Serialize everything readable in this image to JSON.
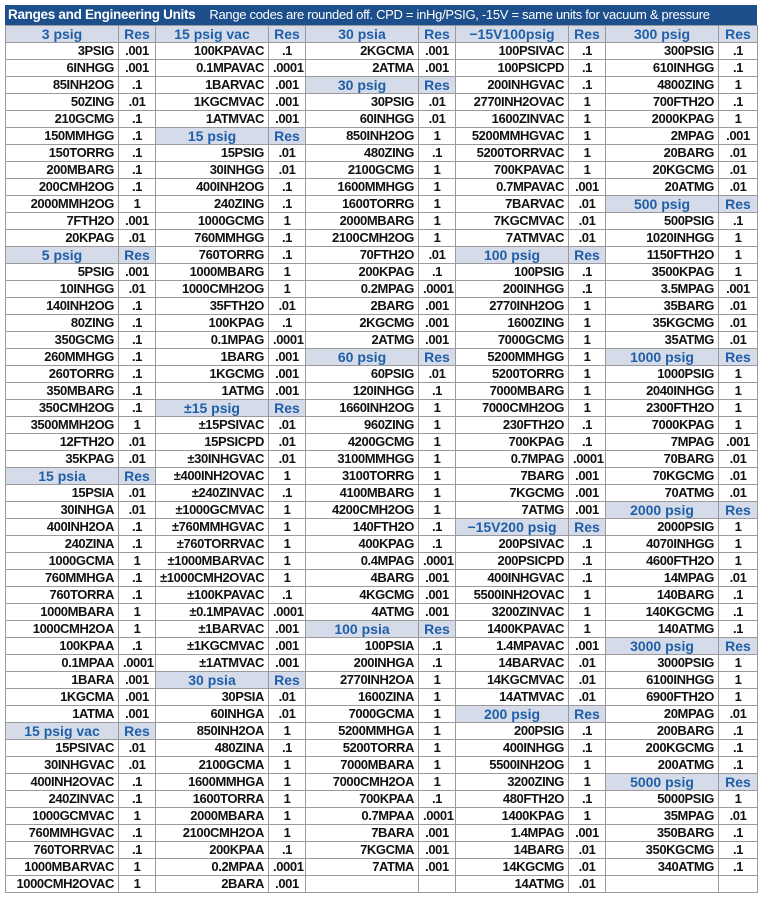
{
  "title": "Ranges and Engineering Units",
  "subtitle": "Range codes are rounded off.  CPD = inHg/PSIG, -15V = same units for vacuum & pressure",
  "colors": {
    "title_bg": "#1d4f8c",
    "header_bg": "#d5dbe9",
    "header_text": "#1f5fa8"
  },
  "columns": [
    {
      "rows": [
        {
          "header": "3 psig",
          "res": "Res"
        },
        {
          "code": "3PSIG",
          "res": ".001"
        },
        {
          "code": "6INHGG",
          "res": ".001"
        },
        {
          "code": "85INH2OG",
          "res": ".1"
        },
        {
          "code": "50ZING",
          "res": ".01"
        },
        {
          "code": "210GCMG",
          "res": ".1"
        },
        {
          "code": "150MMHGG",
          "res": ".1"
        },
        {
          "code": "150TORRG",
          "res": ".1"
        },
        {
          "code": "200MBARG",
          "res": ".1"
        },
        {
          "code": "200CMH2OG",
          "res": ".1"
        },
        {
          "code": "2000MMH2OG",
          "res": "1"
        },
        {
          "code": "7FTH2O",
          "res": ".001"
        },
        {
          "code": "20KPAG",
          "res": ".01"
        },
        {
          "header": "5 psig",
          "res": "Res"
        },
        {
          "code": "5PSIG",
          "res": ".001"
        },
        {
          "code": "10INHGG",
          "res": ".01"
        },
        {
          "code": "140INH2OG",
          "res": ".1"
        },
        {
          "code": "80ZING",
          "res": ".1"
        },
        {
          "code": "350GCMG",
          "res": ".1"
        },
        {
          "code": "260MMHGG",
          "res": ".1"
        },
        {
          "code": "260TORRG",
          "res": ".1"
        },
        {
          "code": "350MBARG",
          "res": ".1"
        },
        {
          "code": "350CMH2OG",
          "res": ".1"
        },
        {
          "code": "3500MMH2OG",
          "res": "1"
        },
        {
          "code": "12FTH2O",
          "res": ".01"
        },
        {
          "code": "35KPAG",
          "res": ".01"
        },
        {
          "header": "15 psia",
          "res": "Res"
        },
        {
          "code": "15PSIA",
          "res": ".01"
        },
        {
          "code": "30INHGA",
          "res": ".01"
        },
        {
          "code": "400INH2OA",
          "res": ".1"
        },
        {
          "code": "240ZINA",
          "res": ".1"
        },
        {
          "code": "1000GCMA",
          "res": "1"
        },
        {
          "code": "760MMHGA",
          "res": ".1"
        },
        {
          "code": "760TORRA",
          "res": ".1"
        },
        {
          "code": "1000MBARA",
          "res": "1"
        },
        {
          "code": "1000CMH2OA",
          "res": "1"
        },
        {
          "code": "100KPAA",
          "res": ".1"
        },
        {
          "code": "0.1MPAA",
          "res": ".0001"
        },
        {
          "code": "1BARA",
          "res": ".001"
        },
        {
          "code": "1KGCMA",
          "res": ".001"
        },
        {
          "code": "1ATMA",
          "res": ".001"
        },
        {
          "header": "15 psig vac",
          "res": "Res"
        },
        {
          "code": "15PSIVAC",
          "res": ".01"
        },
        {
          "code": "30INHGVAC",
          "res": ".01"
        },
        {
          "code": "400INH2OVAC",
          "res": ".1"
        },
        {
          "code": "240ZINVAC",
          "res": ".1"
        },
        {
          "code": "1000GCMVAC",
          "res": "1"
        },
        {
          "code": "760MMHGVAC",
          "res": ".1"
        },
        {
          "code": "760TORRVAC",
          "res": ".1"
        },
        {
          "code": "1000MBARVAC",
          "res": "1"
        },
        {
          "code": "1000CMH2OVAC",
          "res": "1"
        }
      ]
    },
    {
      "rows": [
        {
          "header": "15 psig vac",
          "res": "Res"
        },
        {
          "code": "100KPAVAC",
          "res": ".1"
        },
        {
          "code": "0.1MPAVAC",
          "res": ".0001"
        },
        {
          "code": "1BARVAC",
          "res": ".001"
        },
        {
          "code": "1KGCMVAC",
          "res": ".001"
        },
        {
          "code": "1ATMVAC",
          "res": ".001"
        },
        {
          "header": "15 psig",
          "res": "Res"
        },
        {
          "code": "15PSIG",
          "res": ".01"
        },
        {
          "code": "30INHGG",
          "res": ".01"
        },
        {
          "code": "400INH2OG",
          "res": ".1"
        },
        {
          "code": "240ZING",
          "res": ".1"
        },
        {
          "code": "1000GCMG",
          "res": "1"
        },
        {
          "code": "760MMHGG",
          "res": ".1"
        },
        {
          "code": "760TORRG",
          "res": ".1"
        },
        {
          "code": "1000MBARG",
          "res": "1"
        },
        {
          "code": "1000CMH2OG",
          "res": "1"
        },
        {
          "code": "35FTH2O",
          "res": ".01"
        },
        {
          "code": "100KPAG",
          "res": ".1"
        },
        {
          "code": "0.1MPAG",
          "res": ".0001"
        },
        {
          "code": "1BARG",
          "res": ".001"
        },
        {
          "code": "1KGCMG",
          "res": ".001"
        },
        {
          "code": "1ATMG",
          "res": ".001"
        },
        {
          "header": "±15 psig",
          "res": "Res"
        },
        {
          "code": "±15PSIVAC",
          "res": ".01"
        },
        {
          "code": "15PSICPD",
          "res": ".01"
        },
        {
          "code": "±30INHGVAC",
          "res": ".01"
        },
        {
          "code": "±400INH2OVAC",
          "res": "1"
        },
        {
          "code": "±240ZINVAC",
          "res": ".1"
        },
        {
          "code": "±1000GCMVAC",
          "res": "1"
        },
        {
          "code": "±760MMHGVAC",
          "res": "1"
        },
        {
          "code": "±760TORRVAC",
          "res": "1"
        },
        {
          "code": "±1000MBARVAC",
          "res": "1"
        },
        {
          "code": "±1000CMH2OVAC",
          "res": "1"
        },
        {
          "code": "±100KPAVAC",
          "res": ".1"
        },
        {
          "code": "±0.1MPAVAC",
          "res": ".0001"
        },
        {
          "code": "±1BARVAC",
          "res": ".001"
        },
        {
          "code": "±1KGCMVAC",
          "res": ".001"
        },
        {
          "code": "±1ATMVAC",
          "res": ".001"
        },
        {
          "header": "30 psia",
          "res": "Res"
        },
        {
          "code": "30PSIA",
          "res": ".01"
        },
        {
          "code": "60INHGA",
          "res": ".01"
        },
        {
          "code": "850INH2OA",
          "res": "1"
        },
        {
          "code": "480ZINA",
          "res": ".1"
        },
        {
          "code": "2100GCMA",
          "res": "1"
        },
        {
          "code": "1600MMHGA",
          "res": "1"
        },
        {
          "code": "1600TORRA",
          "res": "1"
        },
        {
          "code": "2000MBARA",
          "res": "1"
        },
        {
          "code": "2100CMH2OA",
          "res": "1"
        },
        {
          "code": "200KPAA",
          "res": ".1"
        },
        {
          "code": "0.2MPAA",
          "res": ".0001"
        },
        {
          "code": "2BARA",
          "res": ".001"
        }
      ]
    },
    {
      "rows": [
        {
          "header": "30 psia",
          "res": "Res"
        },
        {
          "code": "2KGCMA",
          "res": ".001"
        },
        {
          "code": "2ATMA",
          "res": ".001"
        },
        {
          "header": "30 psig",
          "res": "Res"
        },
        {
          "code": "30PSIG",
          "res": ".01"
        },
        {
          "code": "60INHGG",
          "res": ".01"
        },
        {
          "code": "850INH2OG",
          "res": "1"
        },
        {
          "code": "480ZING",
          "res": ".1"
        },
        {
          "code": "2100GCMG",
          "res": "1"
        },
        {
          "code": "1600MMHGG",
          "res": "1"
        },
        {
          "code": "1600TORRG",
          "res": "1"
        },
        {
          "code": "2000MBARG",
          "res": "1"
        },
        {
          "code": "2100CMH2OG",
          "res": "1"
        },
        {
          "code": "70FTH2O",
          "res": ".01"
        },
        {
          "code": "200KPAG",
          "res": ".1"
        },
        {
          "code": "0.2MPAG",
          "res": ".0001"
        },
        {
          "code": "2BARG",
          "res": ".001"
        },
        {
          "code": "2KGCMG",
          "res": ".001"
        },
        {
          "code": "2ATMG",
          "res": ".001"
        },
        {
          "header": "60 psig",
          "res": "Res"
        },
        {
          "code": "60PSIG",
          "res": ".01"
        },
        {
          "code": "120INHGG",
          "res": ".1"
        },
        {
          "code": "1660INH2OG",
          "res": "1"
        },
        {
          "code": "960ZING",
          "res": "1"
        },
        {
          "code": "4200GCMG",
          "res": "1"
        },
        {
          "code": "3100MMHGG",
          "res": "1"
        },
        {
          "code": "3100TORRG",
          "res": "1"
        },
        {
          "code": "4100MBARG",
          "res": "1"
        },
        {
          "code": "4200CMH2OG",
          "res": "1"
        },
        {
          "code": "140FTH2O",
          "res": ".1"
        },
        {
          "code": "400KPAG",
          "res": ".1"
        },
        {
          "code": "0.4MPAG",
          "res": ".0001"
        },
        {
          "code": "4BARG",
          "res": ".001"
        },
        {
          "code": "4KGCMG",
          "res": ".001"
        },
        {
          "code": "4ATMG",
          "res": ".001"
        },
        {
          "header": "100 psia",
          "res": "Res"
        },
        {
          "code": "100PSIA",
          "res": ".1"
        },
        {
          "code": "200INHGA",
          "res": ".1"
        },
        {
          "code": "2770INH2OA",
          "res": "1"
        },
        {
          "code": "1600ZINA",
          "res": "1"
        },
        {
          "code": "7000GCMA",
          "res": "1"
        },
        {
          "code": "5200MMHGA",
          "res": "1"
        },
        {
          "code": "5200TORRA",
          "res": "1"
        },
        {
          "code": "7000MBARA",
          "res": "1"
        },
        {
          "code": "7000CMH2OA",
          "res": "1"
        },
        {
          "code": "700KPAA",
          "res": ".1"
        },
        {
          "code": "0.7MPAA",
          "res": ".0001"
        },
        {
          "code": "7BARA",
          "res": ".001"
        },
        {
          "code": "7KGCMA",
          "res": ".001"
        },
        {
          "code": "7ATMA",
          "res": ".001"
        },
        {
          "code": "",
          "res": ""
        }
      ]
    },
    {
      "rows": [
        {
          "header": "−15V100psig",
          "res": "Res"
        },
        {
          "code": "100PSIVAC",
          "res": ".1"
        },
        {
          "code": "100PSICPD",
          "res": ".1"
        },
        {
          "code": "200INHGVAC",
          "res": ".1"
        },
        {
          "code": "2770INH2OVAC",
          "res": "1"
        },
        {
          "code": "1600ZINVAC",
          "res": "1"
        },
        {
          "code": "5200MMHGVAC",
          "res": "1"
        },
        {
          "code": "5200TORRVAC",
          "res": "1"
        },
        {
          "code": "700KPAVAC",
          "res": "1"
        },
        {
          "code": "0.7MPAVAC",
          "res": ".001"
        },
        {
          "code": "7BARVAC",
          "res": ".01"
        },
        {
          "code": "7KGCMVAC",
          "res": ".01"
        },
        {
          "code": "7ATMVAC",
          "res": ".01"
        },
        {
          "header": "100 psig",
          "res": "Res"
        },
        {
          "code": "100PSIG",
          "res": ".1"
        },
        {
          "code": "200INHGG",
          "res": ".1"
        },
        {
          "code": "2770INH2OG",
          "res": "1"
        },
        {
          "code": "1600ZING",
          "res": "1"
        },
        {
          "code": "7000GCMG",
          "res": "1"
        },
        {
          "code": "5200MMHGG",
          "res": "1"
        },
        {
          "code": "5200TORRG",
          "res": "1"
        },
        {
          "code": "7000MBARG",
          "res": "1"
        },
        {
          "code": "7000CMH2OG",
          "res": "1"
        },
        {
          "code": "230FTH2O",
          "res": ".1"
        },
        {
          "code": "700KPAG",
          "res": ".1"
        },
        {
          "code": "0.7MPAG",
          "res": ".0001"
        },
        {
          "code": "7BARG",
          "res": ".001"
        },
        {
          "code": "7KGCMG",
          "res": ".001"
        },
        {
          "code": "7ATMG",
          "res": ".001"
        },
        {
          "header": "−15V200 psig",
          "res": "Res"
        },
        {
          "code": "200PSIVAC",
          "res": ".1"
        },
        {
          "code": "200PSICPD",
          "res": ".1"
        },
        {
          "code": "400INHGVAC",
          "res": ".1"
        },
        {
          "code": "5500INH2OVAC",
          "res": "1"
        },
        {
          "code": "3200ZINVAC",
          "res": "1"
        },
        {
          "code": "1400KPAVAC",
          "res": "1"
        },
        {
          "code": "1.4MPAVAC",
          "res": ".001"
        },
        {
          "code": "14BARVAC",
          "res": ".01"
        },
        {
          "code": "14KGCMVAC",
          "res": ".01"
        },
        {
          "code": "14ATMVAC",
          "res": ".01"
        },
        {
          "header": "200 psig",
          "res": "Res"
        },
        {
          "code": "200PSIG",
          "res": ".1"
        },
        {
          "code": "400INHGG",
          "res": ".1"
        },
        {
          "code": "5500INH2OG",
          "res": "1"
        },
        {
          "code": "3200ZING",
          "res": "1"
        },
        {
          "code": "480FTH2O",
          "res": ".1"
        },
        {
          "code": "1400KPAG",
          "res": "1"
        },
        {
          "code": "1.4MPAG",
          "res": ".001"
        },
        {
          "code": "14BARG",
          "res": ".01"
        },
        {
          "code": "14KGCMG",
          "res": ".01"
        },
        {
          "code": "14ATMG",
          "res": ".01"
        }
      ]
    },
    {
      "rows": [
        {
          "header": "300 psig",
          "res": "Res"
        },
        {
          "code": "300PSIG",
          "res": ".1"
        },
        {
          "code": "610INHGG",
          "res": ".1"
        },
        {
          "code": "4800ZING",
          "res": "1"
        },
        {
          "code": "700FTH2O",
          "res": ".1"
        },
        {
          "code": "2000KPAG",
          "res": "1"
        },
        {
          "code": "2MPAG",
          "res": ".001"
        },
        {
          "code": "20BARG",
          "res": ".01"
        },
        {
          "code": "20KGCMG",
          "res": ".01"
        },
        {
          "code": "20ATMG",
          "res": ".01"
        },
        {
          "header": "500 psig",
          "res": "Res"
        },
        {
          "code": "500PSIG",
          "res": ".1"
        },
        {
          "code": "1020INHGG",
          "res": "1"
        },
        {
          "code": "1150FTH2O",
          "res": "1"
        },
        {
          "code": "3500KPAG",
          "res": "1"
        },
        {
          "code": "3.5MPAG",
          "res": ".001"
        },
        {
          "code": "35BARG",
          "res": ".01"
        },
        {
          "code": "35KGCMG",
          "res": ".01"
        },
        {
          "code": "35ATMG",
          "res": ".01"
        },
        {
          "header": "1000 psig",
          "res": "Res"
        },
        {
          "code": "1000PSIG",
          "res": "1"
        },
        {
          "code": "2040INHGG",
          "res": "1"
        },
        {
          "code": "2300FTH2O",
          "res": "1"
        },
        {
          "code": "7000KPAG",
          "res": "1"
        },
        {
          "code": "7MPAG",
          "res": ".001"
        },
        {
          "code": "70BARG",
          "res": ".01"
        },
        {
          "code": "70KGCMG",
          "res": ".01"
        },
        {
          "code": "70ATMG",
          "res": ".01"
        },
        {
          "header": "2000 psig",
          "res": "Res"
        },
        {
          "code": "2000PSIG",
          "res": "1"
        },
        {
          "code": "4070INHGG",
          "res": "1"
        },
        {
          "code": "4600FTH2O",
          "res": "1"
        },
        {
          "code": "14MPAG",
          "res": ".01"
        },
        {
          "code": "140BARG",
          "res": ".1"
        },
        {
          "code": "140KGCMG",
          "res": ".1"
        },
        {
          "code": "140ATMG",
          "res": ".1"
        },
        {
          "header": "3000 psig",
          "res": "Res"
        },
        {
          "code": "3000PSIG",
          "res": "1"
        },
        {
          "code": "6100INHGG",
          "res": "1"
        },
        {
          "code": "6900FTH2O",
          "res": "1"
        },
        {
          "code": "20MPAG",
          "res": ".01"
        },
        {
          "code": "200BARG",
          "res": ".1"
        },
        {
          "code": "200KGCMG",
          "res": ".1"
        },
        {
          "code": "200ATMG",
          "res": ".1"
        },
        {
          "header": "5000 psig",
          "res": "Res"
        },
        {
          "code": "5000PSIG",
          "res": "1"
        },
        {
          "code": "35MPAG",
          "res": ".01"
        },
        {
          "code": "350BARG",
          "res": ".1"
        },
        {
          "code": "350KGCMG",
          "res": ".1"
        },
        {
          "code": "340ATMG",
          "res": ".1"
        },
        {
          "code": "",
          "res": ""
        }
      ]
    }
  ]
}
